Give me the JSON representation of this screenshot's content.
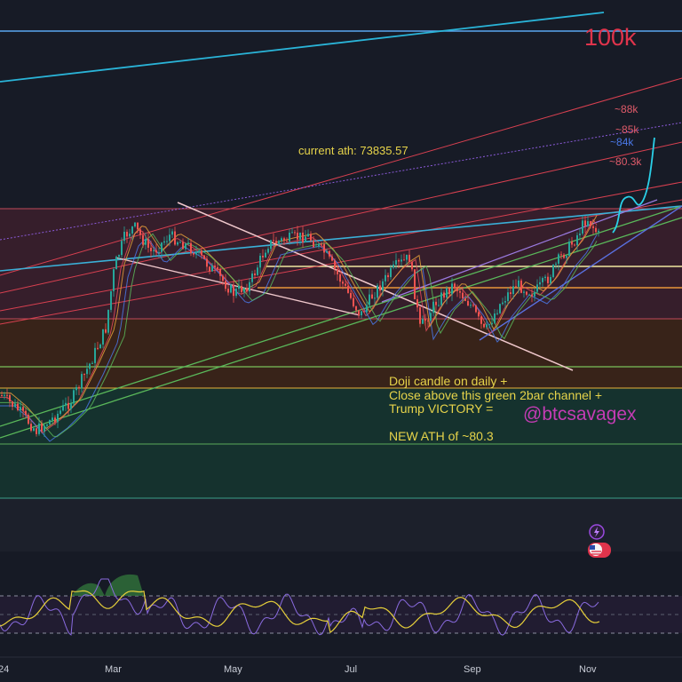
{
  "chart_data": {
    "type": "candlestick",
    "title": "",
    "x_tick_labels": [
      "24",
      "Mar",
      "May",
      "Jul",
      "Sep",
      "Nov"
    ],
    "price_levels": [
      {
        "label": "100k",
        "color": "#e0344c"
      },
      {
        "label": "88k",
        "color": "#e05b6a"
      },
      {
        "label": "85k",
        "color": "#e05b6a"
      },
      {
        "label": "84k",
        "color": "#4a78e8"
      },
      {
        "label": "80.3k",
        "color": "#e05b6a"
      }
    ],
    "current_ath_label": "current ath: 73835.57",
    "annotation_lines": [
      "Doji candle on daily +",
      "Close above this green 2bar channel +",
      "Trump VICTORY =",
      "",
      "NEW ATH of ~80.3"
    ],
    "watermark": "@btcsavagex",
    "indicator": {
      "type": "stochastic RSI",
      "colors": {
        "k": "#8a6be0",
        "d": "#e6cf3a",
        "overbought_fill": "#2f6e3a"
      }
    },
    "colors": {
      "up_candle": "#26a69a",
      "down_candle": "#ef5350",
      "annotation_text": "#e6d34a",
      "watermark": "#c43cb4",
      "background": "#171b26"
    }
  }
}
